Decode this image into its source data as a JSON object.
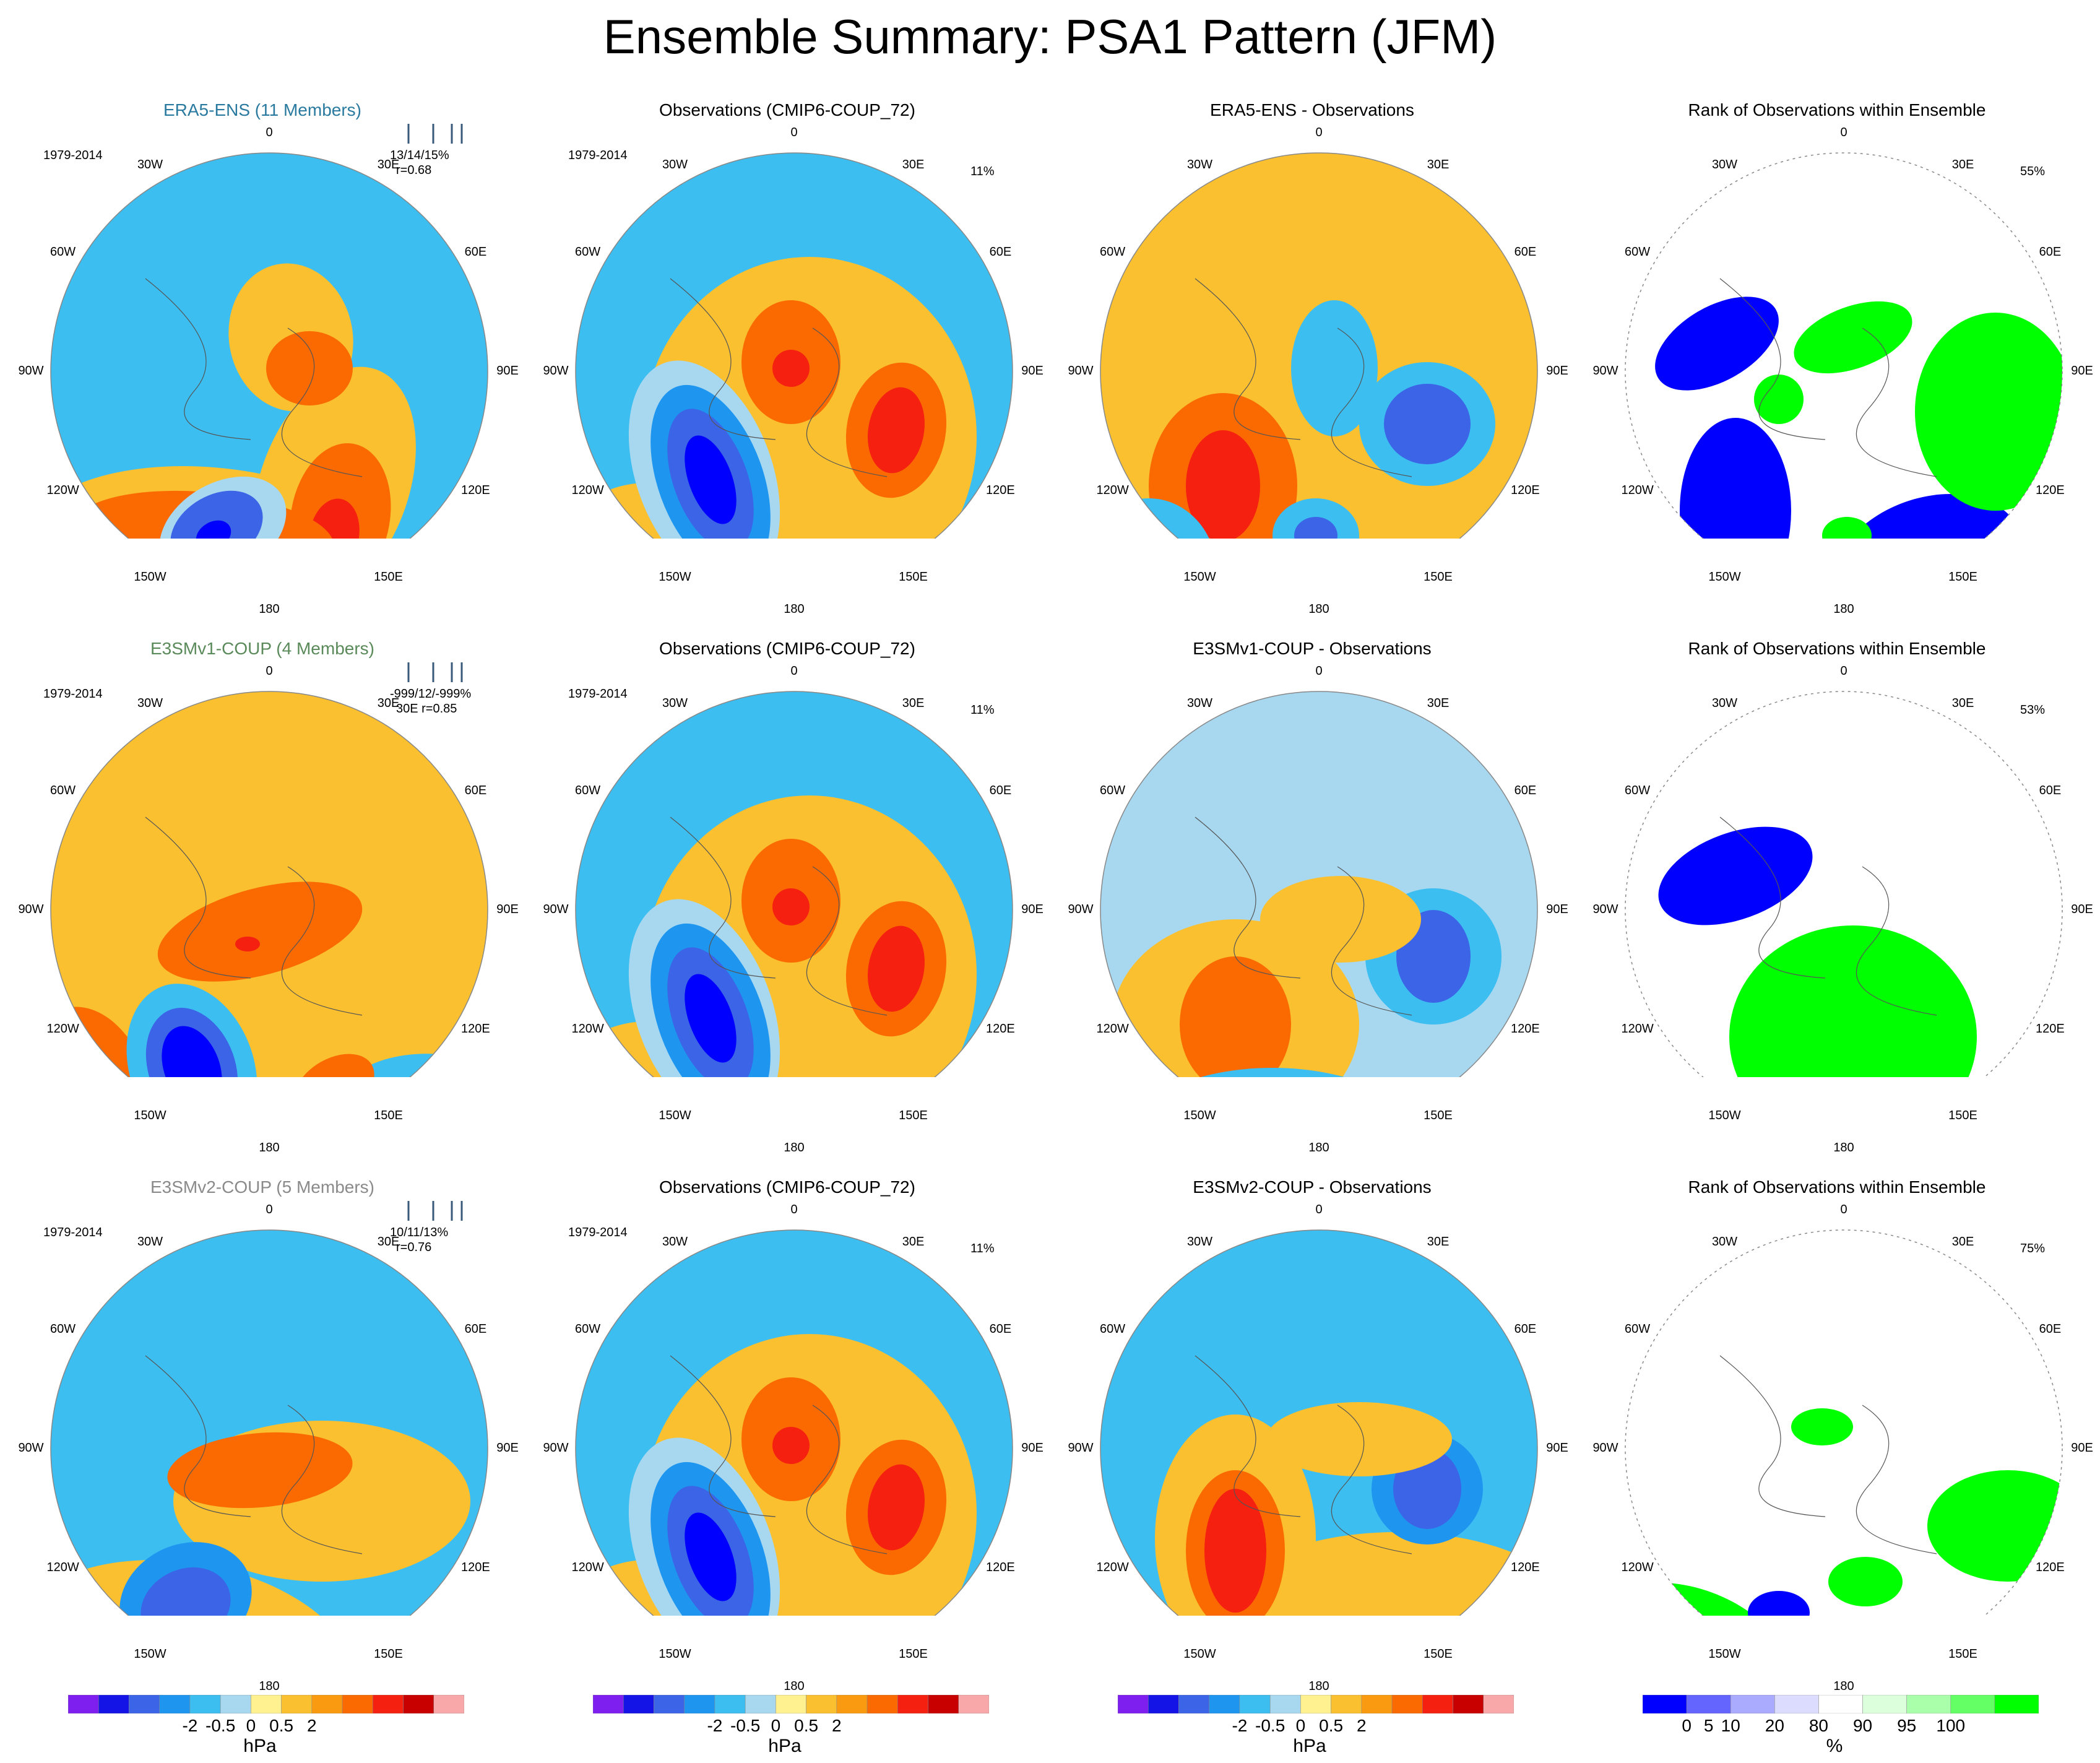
{
  "title": "Ensemble Summary: PSA1 Pattern (JFM)",
  "lon_labels": [
    "0",
    "30E",
    "60E",
    "90E",
    "120E",
    "150E",
    "180",
    "150W",
    "120W",
    "90W",
    "60W",
    "30W"
  ],
  "panels": [
    [
      {
        "title": "ERA5-ENS (11 Members)",
        "title_color": "era5",
        "period": "1979-2014",
        "stats1": "13/14/15%",
        "stats2": "r=0.68",
        "pct": "",
        "kind": "ens_a",
        "bars": true
      },
      {
        "title": "Observations (CMIP6-COUP_72)",
        "title_color": "",
        "period": "1979-2014",
        "stats1": "",
        "stats2": "",
        "pct": "11%",
        "kind": "obs"
      },
      {
        "title": "ERA5-ENS - Observations",
        "title_color": "",
        "period": "",
        "stats1": "",
        "stats2": "",
        "pct": "",
        "kind": "diff_a"
      },
      {
        "title": "Rank of Observations within Ensemble",
        "title_color": "",
        "period": "",
        "stats1": "",
        "stats2": "",
        "pct": "55%",
        "kind": "rank_a"
      }
    ],
    [
      {
        "title": "E3SMv1-COUP (4 Members)",
        "title_color": "v1",
        "period": "1979-2014",
        "stats1": "-999/12/-999%",
        "stats2": "30E r=0.85",
        "pct": "",
        "kind": "ens_b",
        "bars": true
      },
      {
        "title": "Observations (CMIP6-COUP_72)",
        "title_color": "",
        "period": "1979-2014",
        "stats1": "",
        "stats2": "",
        "pct": "11%",
        "kind": "obs"
      },
      {
        "title": "E3SMv1-COUP - Observations",
        "title_color": "",
        "period": "",
        "stats1": "",
        "stats2": "",
        "pct": "",
        "kind": "diff_b"
      },
      {
        "title": "Rank of Observations within Ensemble",
        "title_color": "",
        "period": "",
        "stats1": "",
        "stats2": "",
        "pct": "53%",
        "kind": "rank_b"
      }
    ],
    [
      {
        "title": "E3SMv2-COUP (5 Members)",
        "title_color": "v2",
        "period": "1979-2014",
        "stats1": "10/11/13%",
        "stats2": "r=0.76",
        "pct": "",
        "kind": "ens_c",
        "bars": true
      },
      {
        "title": "Observations (CMIP6-COUP_72)",
        "title_color": "",
        "period": "1979-2014",
        "stats1": "",
        "stats2": "",
        "pct": "11%",
        "kind": "obs"
      },
      {
        "title": "E3SMv2-COUP - Observations",
        "title_color": "",
        "period": "",
        "stats1": "",
        "stats2": "",
        "pct": "",
        "kind": "diff_c"
      },
      {
        "title": "Rank of Observations within Ensemble",
        "title_color": "",
        "period": "",
        "stats1": "",
        "stats2": "",
        "pct": "75%",
        "kind": "rank_c"
      }
    ]
  ],
  "colorbars": [
    {
      "colors": [
        "#7f1fef",
        "#1414e6",
        "#3c64e6",
        "#1e96f0",
        "#3cbef0",
        "#a8d8f0",
        "#fff090",
        "#fac030",
        "#fa9a10",
        "#fa6a00",
        "#f52010",
        "#c80000",
        "#f8a8a8"
      ],
      "ticks": [
        "-2",
        "-0.5",
        "0",
        "0.5",
        "2"
      ],
      "unit": "hPa"
    },
    {
      "colors": [
        "#7f1fef",
        "#1414e6",
        "#3c64e6",
        "#1e96f0",
        "#3cbef0",
        "#a8d8f0",
        "#fff090",
        "#fac030",
        "#fa9a10",
        "#fa6a00",
        "#f52010",
        "#c80000",
        "#f8a8a8"
      ],
      "ticks": [
        "-2",
        "-0.5",
        "0",
        "0.5",
        "2"
      ],
      "unit": "hPa"
    },
    {
      "colors": [
        "#7f1fef",
        "#1414e6",
        "#3c64e6",
        "#1e96f0",
        "#3cbef0",
        "#a8d8f0",
        "#fff090",
        "#fac030",
        "#fa9a10",
        "#fa6a00",
        "#f52010",
        "#c80000",
        "#f8a8a8"
      ],
      "ticks": [
        "-2",
        "-0.5",
        "0",
        "0.5",
        "2"
      ],
      "unit": "hPa"
    },
    {
      "colors": [
        "#0000ff",
        "#6464ff",
        "#aaaaff",
        "#dcdcff",
        "#ffffff",
        "#dcffdc",
        "#aaffaa",
        "#64ff64",
        "#00ff00"
      ],
      "ticks": [
        "0",
        "5",
        "10",
        "20",
        "80",
        "90",
        "95",
        "100"
      ],
      "unit": "%"
    }
  ],
  "palette": {
    "deep_neg": "#0000ff",
    "neg2": "#3c64e6",
    "neg1": "#1e96f0",
    "neg0": "#3cbef0",
    "neg_light": "#a8d8f0",
    "pos_light": "#fff090",
    "pos0": "#fac030",
    "pos1": "#fa6a00",
    "pos2": "#f52010",
    "rank_low": "#0000ff",
    "rank_high": "#00ff00"
  }
}
